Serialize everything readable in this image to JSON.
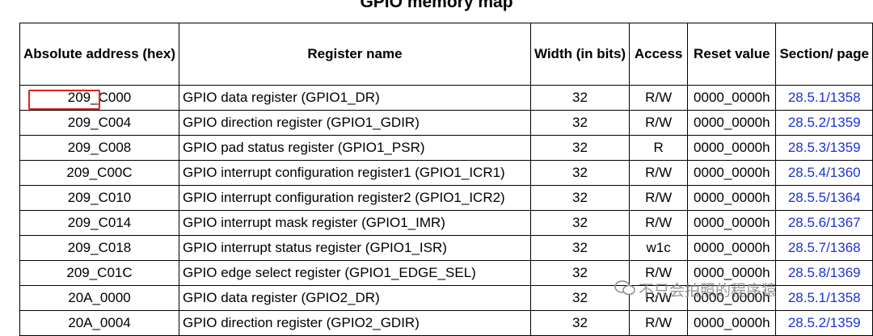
{
  "title": "GPIO memory map",
  "table": {
    "header": [
      "Absolute address (hex)",
      "Register name",
      "Width (in bits)",
      "Access",
      "Reset value",
      "Section/ page"
    ],
    "rows": [
      [
        "209_C000",
        "GPIO data register (GPIO1_DR)",
        32,
        "R/W",
        "0000_0000h",
        "28.5.1/1358"
      ],
      [
        "209_C004",
        "GPIO direction register (GPIO1_GDIR)",
        32,
        "R/W",
        "0000_0000h",
        "28.5.2/1359"
      ],
      [
        "209_C008",
        "GPIO pad status register (GPIO1_PSR)",
        32,
        "R",
        "0000_0000h",
        "28.5.3/1359"
      ],
      [
        "209_C00C",
        "GPIO interrupt configuration register1 (GPIO1_ICR1)",
        32,
        "R/W",
        "0000_0000h",
        "28.5.4/1360"
      ],
      [
        "209_C010",
        "GPIO interrupt configuration register2 (GPIO1_ICR2)",
        32,
        "R/W",
        "0000_0000h",
        "28.5.5/1364"
      ],
      [
        "209_C014",
        "GPIO interrupt mask register (GPIO1_IMR)",
        32,
        "R/W",
        "0000_0000h",
        "28.5.6/1367"
      ],
      [
        "209_C018",
        "GPIO interrupt status register (GPIO1_ISR)",
        32,
        "w1c",
        "0000_0000h",
        "28.5.7/1368"
      ],
      [
        "209_C01C",
        "GPIO edge select register (GPIO1_EDGE_SEL)",
        32,
        "R/W",
        "0000_0000h",
        "28.5.8/1369"
      ],
      [
        "20A_0000",
        "GPIO data register (GPIO2_DR)",
        32,
        "R/W",
        "0000_0000h",
        "28.5.1/1358"
      ],
      [
        "20A_0004",
        "GPIO direction register (GPIO2_GDIR)",
        32,
        "R/W",
        "0000_0000h",
        "28.5.2/1359"
      ]
    ]
  },
  "watermark": "不只会拍照的程序猿"
}
